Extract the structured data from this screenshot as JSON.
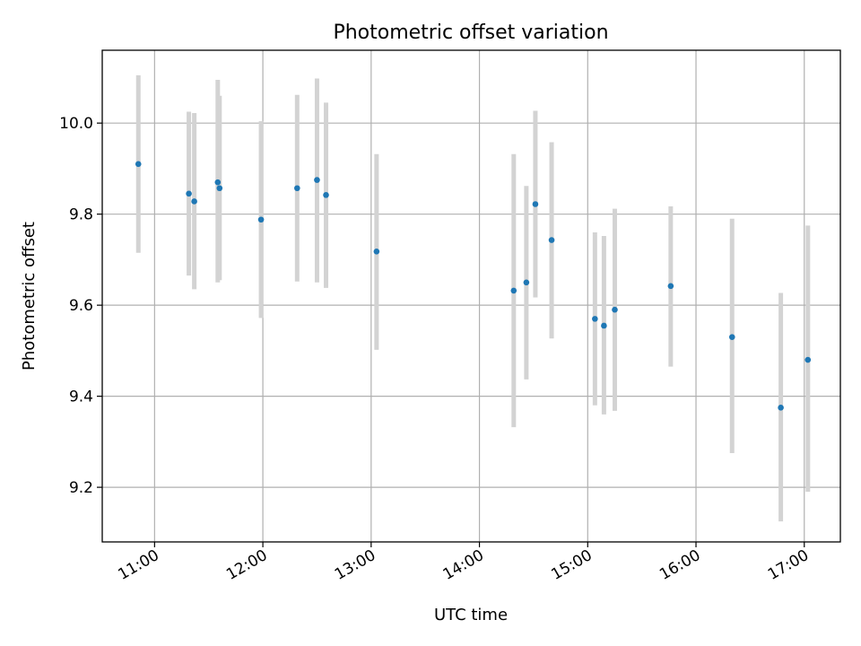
{
  "chart_data": {
    "type": "scatter",
    "title": "Photometric offset variation",
    "xlabel": "UTC time",
    "ylabel": "Photometric offset",
    "x_unit": "time of day (HH:MM, UTC)",
    "xlim": [
      "10:31",
      "17:20"
    ],
    "ylim": [
      9.08,
      10.16
    ],
    "xticks": [
      "11:00",
      "12:00",
      "13:00",
      "14:00",
      "15:00",
      "16:00",
      "17:00"
    ],
    "yticks": [
      9.2,
      9.4,
      9.6,
      9.8,
      10.0
    ],
    "grid": true,
    "legend": "none",
    "colors": {
      "marker": "#1f77b4",
      "error_bar": "#d3d3d3"
    },
    "series": [
      {
        "points": [
          {
            "x": "10:51",
            "y": 9.91,
            "err_low": 9.715,
            "err_high": 10.105
          },
          {
            "x": "11:19",
            "y": 9.845,
            "err_low": 9.665,
            "err_high": 10.025
          },
          {
            "x": "11:22",
            "y": 9.828,
            "err_low": 9.635,
            "err_high": 10.022
          },
          {
            "x": "11:35",
            "y": 9.87,
            "err_low": 9.65,
            "err_high": 10.095
          },
          {
            "x": "11:36",
            "y": 9.857,
            "err_low": 9.655,
            "err_high": 10.06
          },
          {
            "x": "11:59",
            "y": 9.788,
            "err_low": 9.572,
            "err_high": 10.004
          },
          {
            "x": "12:19",
            "y": 9.857,
            "err_low": 9.652,
            "err_high": 10.062
          },
          {
            "x": "12:30",
            "y": 9.875,
            "err_low": 9.65,
            "err_high": 10.098
          },
          {
            "x": "12:35",
            "y": 9.842,
            "err_low": 9.638,
            "err_high": 10.045
          },
          {
            "x": "13:03",
            "y": 9.718,
            "err_low": 9.502,
            "err_high": 9.932
          },
          {
            "x": "14:19",
            "y": 9.632,
            "err_low": 9.332,
            "err_high": 9.932
          },
          {
            "x": "14:26",
            "y": 9.65,
            "err_low": 9.437,
            "err_high": 9.862
          },
          {
            "x": "14:31",
            "y": 9.822,
            "err_low": 9.617,
            "err_high": 10.027
          },
          {
            "x": "14:40",
            "y": 9.743,
            "err_low": 9.527,
            "err_high": 9.958
          },
          {
            "x": "15:04",
            "y": 9.57,
            "err_low": 9.38,
            "err_high": 9.76
          },
          {
            "x": "15:09",
            "y": 9.555,
            "err_low": 9.36,
            "err_high": 9.752
          },
          {
            "x": "15:15",
            "y": 9.59,
            "err_low": 9.368,
            "err_high": 9.812
          },
          {
            "x": "15:46",
            "y": 9.642,
            "err_low": 9.465,
            "err_high": 9.817
          },
          {
            "x": "16:20",
            "y": 9.53,
            "err_low": 9.275,
            "err_high": 9.79
          },
          {
            "x": "16:47",
            "y": 9.375,
            "err_low": 9.125,
            "err_high": 9.627
          },
          {
            "x": "17:02",
            "y": 9.48,
            "err_low": 9.19,
            "err_high": 9.775
          }
        ]
      }
    ]
  }
}
